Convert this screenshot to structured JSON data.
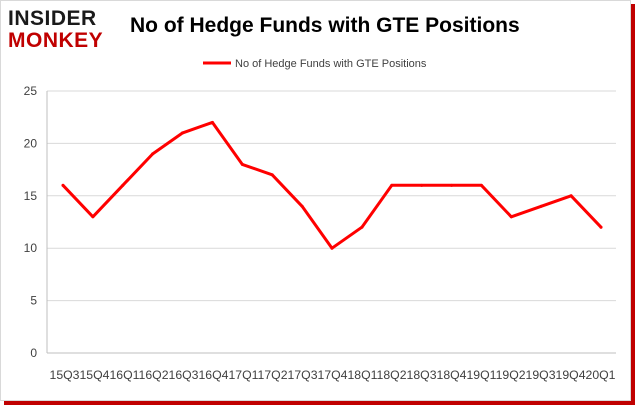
{
  "logo": {
    "line1": "INSIDER",
    "line2": "MONKEY"
  },
  "chart_data": {
    "type": "line",
    "title": "No of Hedge Funds with GTE Positions",
    "xlabel": "",
    "ylabel": "",
    "ylim": [
      0,
      25
    ],
    "yticks": [
      0,
      5,
      10,
      15,
      20,
      25
    ],
    "grid": true,
    "legend_position": "top-center",
    "categories": [
      "15Q3",
      "15Q4",
      "16Q1",
      "16Q2",
      "16Q3",
      "16Q4",
      "17Q1",
      "17Q2",
      "17Q3",
      "17Q4",
      "18Q1",
      "18Q2",
      "18Q3",
      "18Q4",
      "19Q1",
      "19Q2",
      "19Q3",
      "19Q4",
      "20Q1"
    ],
    "x_tick_text": "15Q315Q416Q116Q216Q316Q417Q117Q217Q317Q418Q118Q218Q318Q419Q119Q219Q319Q420Q1",
    "series": [
      {
        "name": "No of Hedge Funds with GTE Positions",
        "color": "#ff0000",
        "values": [
          16,
          13,
          16,
          19,
          21,
          22,
          18,
          17,
          14,
          10,
          12,
          16,
          16,
          16,
          16,
          13,
          14,
          15,
          12
        ]
      }
    ]
  }
}
